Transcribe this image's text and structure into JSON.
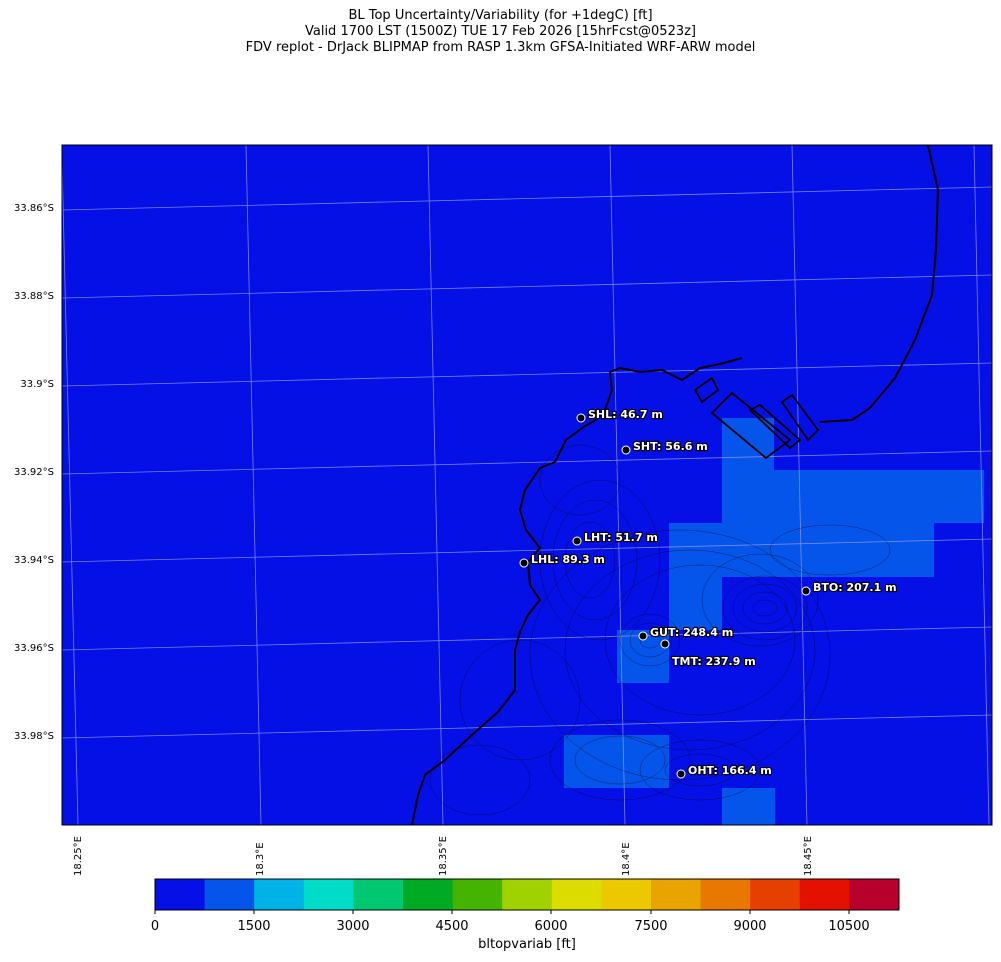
{
  "title": {
    "line1": "BL Top Uncertainty/Variability (for +1degC) [ft]",
    "line2": "Valid 1700 LST (1500Z) TUE 17 Feb 2026 [15hrFcst@0523z]",
    "line3": "FDV replot - DrJack BLIPMAP from RASP 1.3km GFSA-Initiated WRF-ARW model"
  },
  "latitude_labels": [
    "33.86°S",
    "33.88°S",
    "33.9°S",
    "33.92°S",
    "33.94°S",
    "33.96°S",
    "33.98°S"
  ],
  "longitude_labels": [
    "18.25°E",
    "18.3°E",
    "18.35°E",
    "18.4°E",
    "18.45°E"
  ],
  "stations": [
    {
      "id": "SHL",
      "label": "SHL: 46.7 m"
    },
    {
      "id": "SHT",
      "label": "SHT: 56.6 m"
    },
    {
      "id": "LHT",
      "label": "LHT: 51.7 m"
    },
    {
      "id": "LHL",
      "label": "LHL: 89.3 m"
    },
    {
      "id": "BTO",
      "label": "BTO: 207.1 m"
    },
    {
      "id": "GUT",
      "label": "GUT: 248.4 m"
    },
    {
      "id": "TMT",
      "label": "TMT: 237.9 m"
    },
    {
      "id": "OHT",
      "label": "OHT: 166.4 m"
    }
  ],
  "colorbar": {
    "label": "bltopvariab [ft]",
    "tick_labels": [
      "0",
      "1500",
      "3000",
      "4500",
      "6000",
      "7500",
      "9000",
      "10500"
    ],
    "colors": [
      "#0510e6",
      "#0555ea",
      "#00b2e6",
      "#00dcc8",
      "#00c870",
      "#00aa22",
      "#44b400",
      "#a0d200",
      "#dcdc00",
      "#ecc800",
      "#eaa400",
      "#e87800",
      "#e64000",
      "#e41000",
      "#b8002c"
    ]
  },
  "colors": {
    "field_base": "#0510e6",
    "field_level2": "#0555ea",
    "coastline": "#000000",
    "grid": "#8c94ee"
  }
}
